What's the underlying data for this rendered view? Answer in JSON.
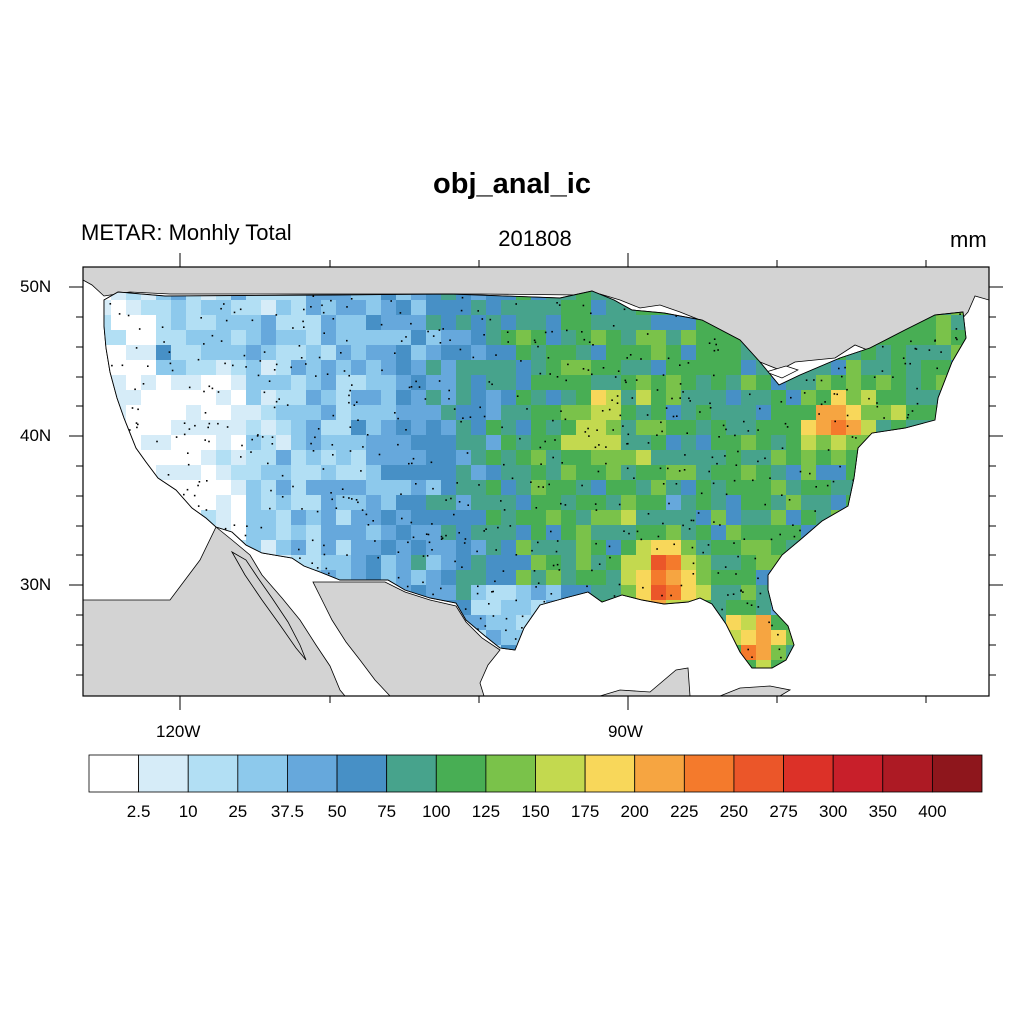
{
  "title": "obj_anal_ic",
  "left_subtitle": "METAR: Monhly Total",
  "center_subtitle": "201808",
  "units": "mm",
  "lat_labels": [
    "50N",
    "40N",
    "30N"
  ],
  "lon_labels": [
    "120W",
    "90W"
  ],
  "colorbar": {
    "labels": [
      "2.5",
      "10",
      "25",
      "37.5",
      "50",
      "75",
      "100",
      "125",
      "150",
      "175",
      "200",
      "225",
      "250",
      "275",
      "300",
      "350",
      "400"
    ],
    "colors": [
      "#ffffff",
      "#d6ecf8",
      "#b2dff4",
      "#8dc9ec",
      "#66a8dc",
      "#4790c6",
      "#47a38c",
      "#48ae54",
      "#7ac24a",
      "#c3d94f",
      "#f8d75a",
      "#f6a541",
      "#f47a2c",
      "#eb5629",
      "#dc3128",
      "#c81f2a",
      "#ad1a24",
      "#8e161c"
    ]
  },
  "map": {
    "land_color": "#d3d3d3",
    "ocean_color": "#ffffff",
    "lon_range": [
      -126.5,
      -65.5
    ],
    "lat_range": [
      22.5,
      51.3
    ]
  }
}
